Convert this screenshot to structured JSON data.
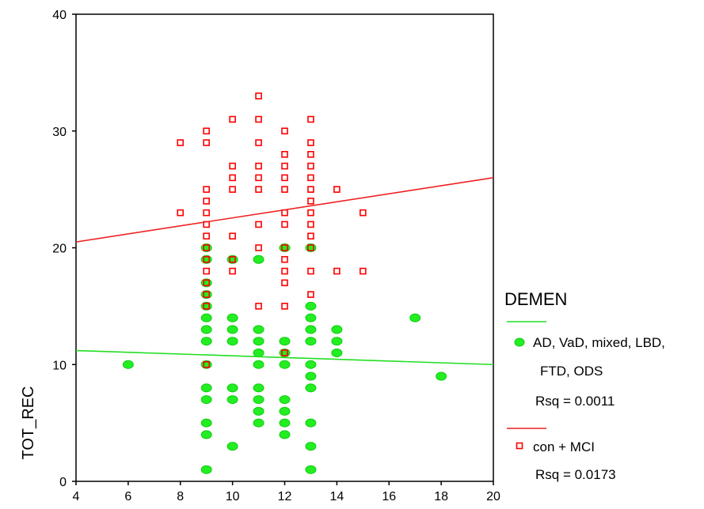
{
  "chart_data": {
    "type": "scatter",
    "ylabel": "TOT_REC",
    "xlim": [
      4,
      20
    ],
    "ylim": [
      0,
      40
    ],
    "x_ticks": [
      "4",
      "6",
      "8",
      "10",
      "12",
      "14",
      "16",
      "18",
      "20"
    ],
    "y_ticks": [
      "0",
      "10",
      "20",
      "30",
      "40"
    ],
    "grid": false,
    "legend": {
      "title": "DEMEN",
      "placement": "right",
      "entries": [
        {
          "label_lines": [
            "AD, VaD, mixed, LBD,",
            "FTD, ODS"
          ],
          "rsq": "Rsq = 0.0011"
        },
        {
          "label_lines": [
            "con + MCI"
          ],
          "rsq": "Rsq = 0.0173"
        }
      ]
    },
    "series": [
      {
        "name": "AD, VaD, mixed, LBD, FTD, ODS",
        "marker": "filled-circle",
        "color": "#22ee22",
        "fit_line": {
          "color": "#22dd22",
          "start": [
            4,
            11.2
          ],
          "end": [
            20,
            10.0
          ]
        },
        "points": [
          [
            6,
            10
          ],
          [
            9,
            1
          ],
          [
            9,
            4
          ],
          [
            9,
            5
          ],
          [
            9,
            7
          ],
          [
            9,
            8
          ],
          [
            9,
            10
          ],
          [
            9,
            12
          ],
          [
            9,
            13
          ],
          [
            9,
            14
          ],
          [
            9,
            15
          ],
          [
            9,
            16
          ],
          [
            9,
            17
          ],
          [
            9,
            19
          ],
          [
            9,
            20
          ],
          [
            10,
            3
          ],
          [
            10,
            7
          ],
          [
            10,
            8
          ],
          [
            10,
            12
          ],
          [
            10,
            13
          ],
          [
            10,
            14
          ],
          [
            10,
            19
          ],
          [
            11,
            5
          ],
          [
            11,
            6
          ],
          [
            11,
            7
          ],
          [
            11,
            8
          ],
          [
            11,
            10
          ],
          [
            11,
            11
          ],
          [
            11,
            12
          ],
          [
            11,
            13
          ],
          [
            11,
            19
          ],
          [
            12,
            4
          ],
          [
            12,
            5
          ],
          [
            12,
            6
          ],
          [
            12,
            7
          ],
          [
            12,
            10
          ],
          [
            12,
            11
          ],
          [
            12,
            12
          ],
          [
            12,
            20
          ],
          [
            13,
            1
          ],
          [
            13,
            3
          ],
          [
            13,
            5
          ],
          [
            13,
            8
          ],
          [
            13,
            9
          ],
          [
            13,
            10
          ],
          [
            13,
            12
          ],
          [
            13,
            13
          ],
          [
            13,
            14
          ],
          [
            13,
            15
          ],
          [
            13,
            20
          ],
          [
            14,
            11
          ],
          [
            14,
            12
          ],
          [
            14,
            13
          ],
          [
            17,
            14
          ],
          [
            18,
            9
          ]
        ]
      },
      {
        "name": "con + MCI",
        "marker": "open-square",
        "color": "#ff0000",
        "fit_line": {
          "color": "#ee2222",
          "start": [
            4,
            20.5
          ],
          "end": [
            20,
            26.0
          ]
        },
        "points": [
          [
            8,
            23
          ],
          [
            8,
            29
          ],
          [
            9,
            10
          ],
          [
            9,
            15
          ],
          [
            9,
            16
          ],
          [
            9,
            17
          ],
          [
            9,
            18
          ],
          [
            9,
            19
          ],
          [
            9,
            20
          ],
          [
            9,
            21
          ],
          [
            9,
            22
          ],
          [
            9,
            23
          ],
          [
            9,
            24
          ],
          [
            9,
            25
          ],
          [
            9,
            29
          ],
          [
            9,
            30
          ],
          [
            10,
            18
          ],
          [
            10,
            19
          ],
          [
            10,
            21
          ],
          [
            10,
            25
          ],
          [
            10,
            26
          ],
          [
            10,
            27
          ],
          [
            10,
            31
          ],
          [
            11,
            15
          ],
          [
            11,
            20
          ],
          [
            11,
            22
          ],
          [
            11,
            25
          ],
          [
            11,
            26
          ],
          [
            11,
            27
          ],
          [
            11,
            29
          ],
          [
            11,
            31
          ],
          [
            11,
            33
          ],
          [
            12,
            11
          ],
          [
            12,
            15
          ],
          [
            12,
            17
          ],
          [
            12,
            18
          ],
          [
            12,
            19
          ],
          [
            12,
            20
          ],
          [
            12,
            22
          ],
          [
            12,
            23
          ],
          [
            12,
            25
          ],
          [
            12,
            26
          ],
          [
            12,
            27
          ],
          [
            12,
            28
          ],
          [
            12,
            30
          ],
          [
            13,
            16
          ],
          [
            13,
            18
          ],
          [
            13,
            20
          ],
          [
            13,
            21
          ],
          [
            13,
            22
          ],
          [
            13,
            23
          ],
          [
            13,
            24
          ],
          [
            13,
            25
          ],
          [
            13,
            26
          ],
          [
            13,
            27
          ],
          [
            13,
            28
          ],
          [
            13,
            29
          ],
          [
            13,
            31
          ],
          [
            14,
            18
          ],
          [
            14,
            25
          ],
          [
            15,
            18
          ],
          [
            15,
            23
          ]
        ]
      }
    ]
  }
}
